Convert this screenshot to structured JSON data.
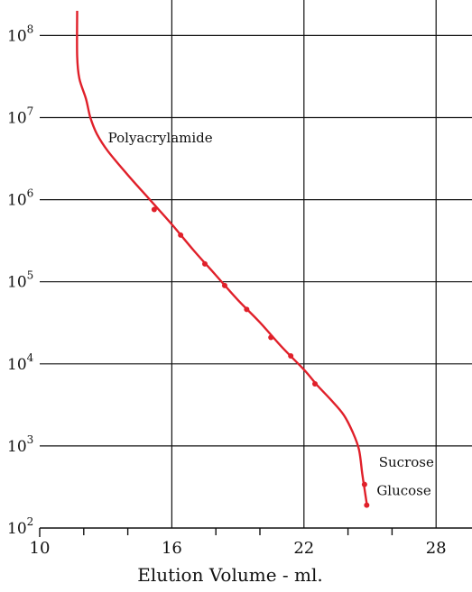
{
  "chart_data": {
    "type": "line",
    "xlabel": "Elution Volume - ml.",
    "ylabel": "",
    "xlim": [
      10,
      30
    ],
    "ylim": [
      100,
      200000000
    ],
    "y_scale": "log",
    "grid": true,
    "x_ticks": [
      {
        "value": 10,
        "label": "10"
      },
      {
        "value": 16,
        "label": "16"
      },
      {
        "value": 22,
        "label": "22"
      },
      {
        "value": 28,
        "label": "28"
      }
    ],
    "x_minor_ticks": [
      12,
      14,
      18,
      20,
      24,
      26
    ],
    "y_ticks": [
      {
        "value": 100,
        "base": "10",
        "exp": "2"
      },
      {
        "value": 1000,
        "base": "10",
        "exp": "3"
      },
      {
        "value": 10000,
        "base": "10",
        "exp": "4"
      },
      {
        "value": 100000,
        "base": "10",
        "exp": "5"
      },
      {
        "value": 1000000,
        "base": "10",
        "exp": "6"
      },
      {
        "value": 10000000,
        "base": "10",
        "exp": "7"
      },
      {
        "value": 100000000,
        "base": "10",
        "exp": "8"
      }
    ],
    "series": [
      {
        "color": "#e0202a",
        "curve": [
          {
            "x": 11.7,
            "y": 200000000
          },
          {
            "x": 11.7,
            "y": 56000000
          },
          {
            "x": 11.8,
            "y": 30000000
          },
          {
            "x": 12.1,
            "y": 17000000
          },
          {
            "x": 12.3,
            "y": 10000000
          },
          {
            "x": 12.6,
            "y": 6300000
          },
          {
            "x": 13.1,
            "y": 3900000
          },
          {
            "x": 14.0,
            "y": 2000000
          },
          {
            "x": 15.0,
            "y": 1000000
          },
          {
            "x": 16.0,
            "y": 500000
          },
          {
            "x": 17.0,
            "y": 240000
          },
          {
            "x": 18.0,
            "y": 120000
          },
          {
            "x": 19.0,
            "y": 60000
          },
          {
            "x": 20.0,
            "y": 32000
          },
          {
            "x": 21.0,
            "y": 16000
          },
          {
            "x": 22.0,
            "y": 8500
          },
          {
            "x": 22.6,
            "y": 5500
          },
          {
            "x": 23.2,
            "y": 3700
          },
          {
            "x": 23.8,
            "y": 2400
          },
          {
            "x": 24.2,
            "y": 1500
          },
          {
            "x": 24.5,
            "y": 900
          },
          {
            "x": 24.65,
            "y": 450
          },
          {
            "x": 24.75,
            "y": 300
          },
          {
            "x": 24.85,
            "y": 200
          }
        ],
        "points": [
          {
            "x": 15.2,
            "y": 760000
          },
          {
            "x": 16.4,
            "y": 370000
          },
          {
            "x": 17.5,
            "y": 165000
          },
          {
            "x": 18.4,
            "y": 90000
          },
          {
            "x": 19.4,
            "y": 46000
          },
          {
            "x": 20.5,
            "y": 21000
          },
          {
            "x": 21.4,
            "y": 12500
          },
          {
            "x": 22.5,
            "y": 5700
          },
          {
            "x": 24.75,
            "y": 340
          },
          {
            "x": 24.85,
            "y": 190
          }
        ]
      }
    ],
    "annotations": [
      {
        "text": "Polyacrylamide",
        "x": 13.1,
        "y": 5000000
      },
      {
        "text": "Sucrose",
        "x": 25.4,
        "y": 560
      },
      {
        "text": "Glucose",
        "x": 25.3,
        "y": 250
      }
    ]
  }
}
